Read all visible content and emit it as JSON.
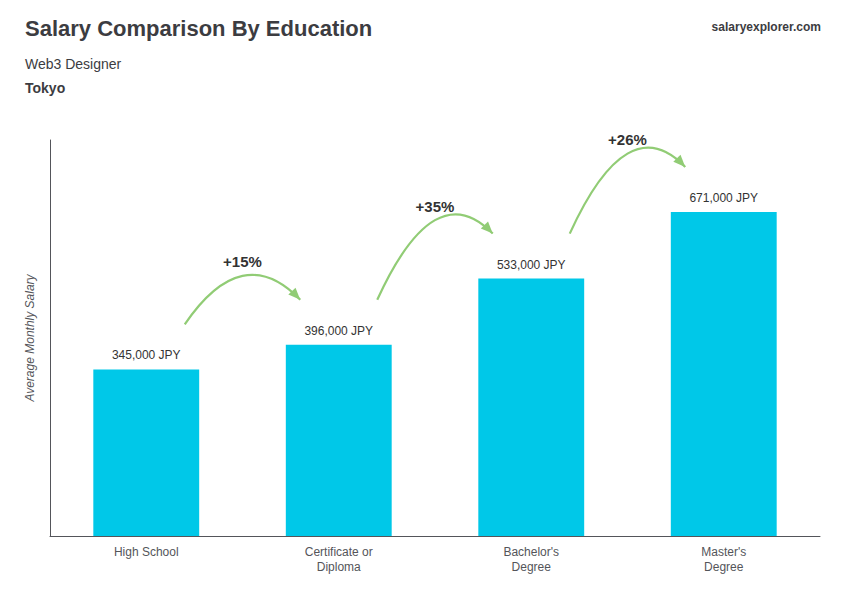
{
  "chart_data": {
    "type": "bar",
    "title": "Salary Comparison By Education",
    "subtitle": "Web3 Designer",
    "city": "Tokyo",
    "branding": [
      "salary",
      "explorer",
      ".com"
    ],
    "ylabel": "Average Monthly Salary",
    "categories": [
      "High School",
      "Certificate or\nDiploma",
      "Bachelor's\nDegree",
      "Master's\nDegree"
    ],
    "values": [
      345000,
      396000,
      533000,
      671000
    ],
    "value_labels": [
      "345,000 JPY",
      "396,000 JPY",
      "533,000 JPY",
      "671,000 JPY"
    ],
    "data_labels": true,
    "annotations": [
      "+15%",
      "+35%",
      "+26%"
    ],
    "color": "#00c8e8",
    "ylim": [
      0,
      820000
    ],
    "grid": false,
    "tick_labels": "x"
  }
}
